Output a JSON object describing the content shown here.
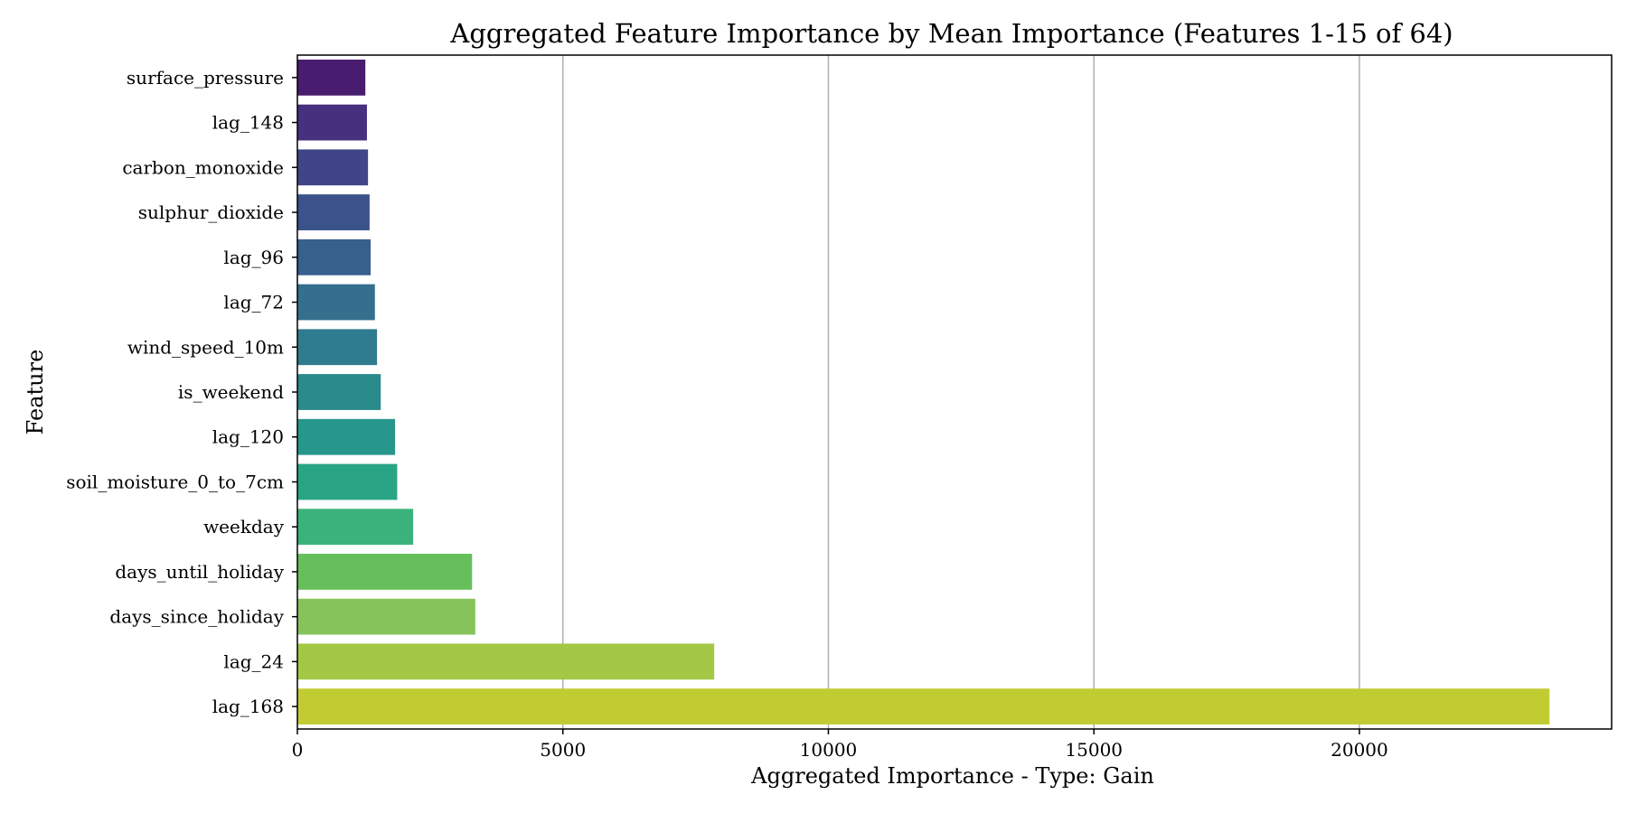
{
  "chart_data": {
    "type": "bar",
    "orientation": "horizontal",
    "title": "Aggregated Feature Importance by Mean Importance (Features 1-15 of 64)",
    "xlabel": "Aggregated Importance - Type: Gain",
    "ylabel": "Feature",
    "xlim": [
      0,
      24750
    ],
    "xticks": [
      0,
      5000,
      10000,
      15000,
      20000
    ],
    "grid": "x-major",
    "categories": [
      "surface_pressure",
      "lag_148",
      "carbon_monoxide",
      "sulphur_dioxide",
      "lag_96",
      "lag_72",
      "wind_speed_10m",
      "is_weekend",
      "lag_120",
      "soil_moisture_0_to_7cm",
      "weekday",
      "days_until_holiday",
      "days_since_holiday",
      "lag_24",
      "lag_168"
    ],
    "values": [
      1280,
      1310,
      1330,
      1360,
      1380,
      1460,
      1500,
      1570,
      1840,
      1880,
      2180,
      3290,
      3350,
      7850,
      23580
    ],
    "colors": [
      "#481d6f",
      "#47307d",
      "#414487",
      "#3b528b",
      "#38608c",
      "#34708d",
      "#2f7c8e",
      "#2a8a8c",
      "#27968b",
      "#29a485",
      "#3bb27b",
      "#67bf5c",
      "#87c35b",
      "#a2c845",
      "#c1cc33"
    ]
  }
}
